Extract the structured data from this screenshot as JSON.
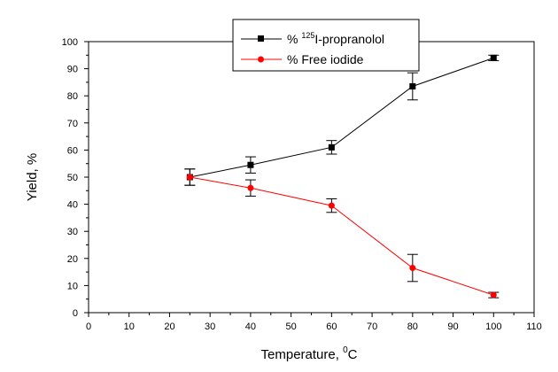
{
  "chart_data": {
    "type": "line",
    "title": "",
    "xlabel": "Temperature, ",
    "xlabel_sup": "0",
    "xlabel_suffix": "C",
    "ylabel": "Yield, %",
    "xlim": [
      0,
      110
    ],
    "ylim": [
      0,
      100
    ],
    "xticks": [
      0,
      10,
      20,
      30,
      40,
      50,
      60,
      70,
      80,
      90,
      100,
      110
    ],
    "yticks": [
      0,
      10,
      20,
      30,
      40,
      50,
      60,
      70,
      80,
      90,
      100
    ],
    "grid": false,
    "legend_position": "top-center",
    "series": [
      {
        "name": "% 125I-propranolol",
        "legend_prefix": "% ",
        "legend_sup": "125",
        "legend_suffix": "I-propranolol",
        "color": "#000000",
        "marker": "square",
        "x": [
          25,
          40,
          60,
          80,
          100
        ],
        "y": [
          50,
          54.5,
          61,
          83.5,
          94
        ],
        "err": [
          3,
          3,
          2.5,
          5,
          1
        ]
      },
      {
        "name": "% Free iodide",
        "legend_prefix": "% ",
        "legend_sup": "",
        "legend_suffix": "Free iodide",
        "color": "#ff0000",
        "marker": "circle",
        "x": [
          25,
          40,
          60,
          80,
          100
        ],
        "y": [
          50,
          46,
          39.5,
          16.5,
          6.5
        ],
        "err": [
          3,
          3,
          2.5,
          5,
          1
        ]
      }
    ]
  }
}
